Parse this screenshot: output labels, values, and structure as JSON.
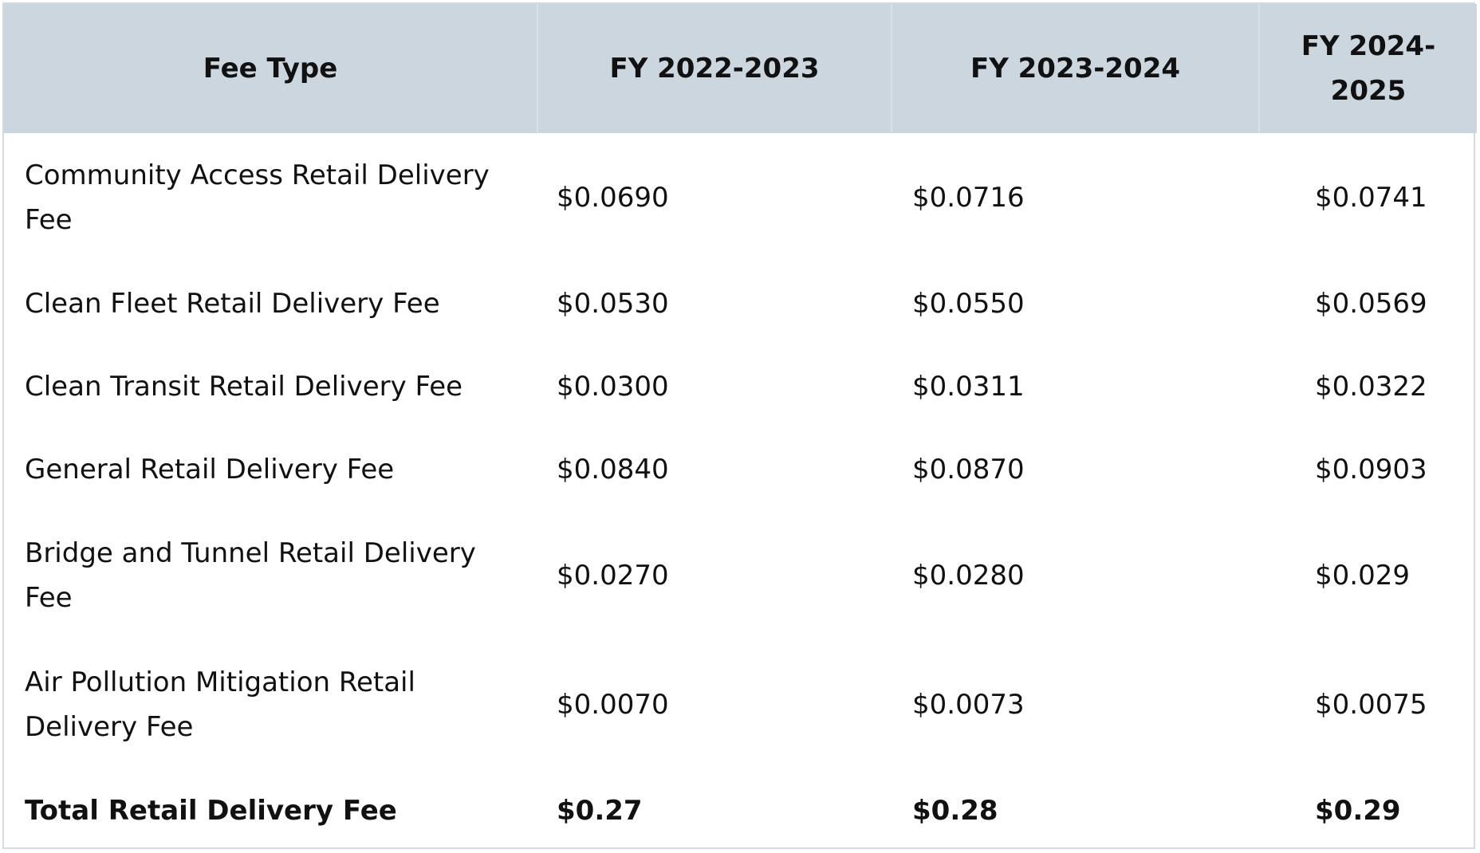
{
  "table": {
    "headers": [
      "Fee Type",
      "FY 2022-2023",
      "FY 2023-2024",
      "FY 2024-2025"
    ],
    "rows": [
      {
        "name": "Community Access Retail Delivery Fee",
        "fy2022_2023": "$0.0690",
        "fy2023_2024": "$0.0716",
        "fy2024_2025": "$0.0741"
      },
      {
        "name": "Clean Fleet Retail Delivery Fee",
        "fy2022_2023": "$0.0530",
        "fy2023_2024": "$0.0550",
        "fy2024_2025": "$0.0569"
      },
      {
        "name": "Clean Transit Retail Delivery Fee",
        "fy2022_2023": "$0.0300",
        "fy2023_2024": "$0.0311",
        "fy2024_2025": "$0.0322"
      },
      {
        "name": "General Retail Delivery Fee",
        "fy2022_2023": "$0.0840",
        "fy2023_2024": "$0.0870",
        "fy2024_2025": "$0.0903"
      },
      {
        "name": "Bridge and Tunnel Retail Delivery Fee",
        "fy2022_2023": "$0.0270",
        "fy2023_2024": "$0.0280",
        "fy2024_2025": "$0.029"
      },
      {
        "name": "Air Pollution Mitigation Retail Delivery Fee",
        "fy2022_2023": "$0.0070",
        "fy2023_2024": "$0.0073",
        "fy2024_2025": "$0.0075"
      }
    ],
    "total": {
      "name": "Total Retail Delivery Fee",
      "fy2022_2023": "$0.27",
      "fy2023_2024": "$0.28",
      "fy2024_2025": "$0.29"
    }
  },
  "colors": {
    "header_background": "#ccd6df",
    "border": "#d3dae2",
    "text": "#111111"
  }
}
